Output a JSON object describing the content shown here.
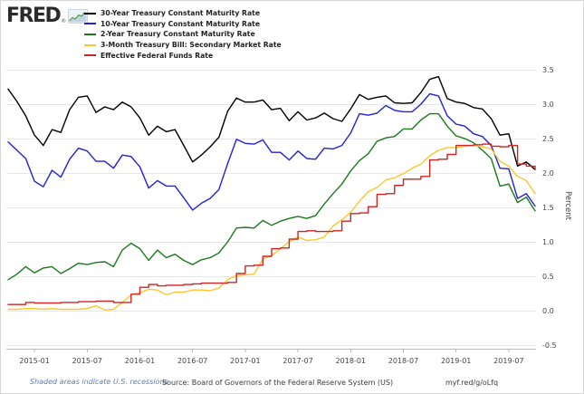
{
  "brand": {
    "logo_text": "FRED",
    "registered_mark": "®"
  },
  "y_axis": {
    "label": "Percent",
    "ticks": [
      3.5,
      3.0,
      2.5,
      2.0,
      1.5,
      1.0,
      0.5,
      0.0,
      -0.5
    ]
  },
  "x_axis": {
    "ticks": [
      {
        "label": "2015-01",
        "index": 3
      },
      {
        "label": "2015-07",
        "index": 9
      },
      {
        "label": "2016-01",
        "index": 15
      },
      {
        "label": "2016-07",
        "index": 21
      },
      {
        "label": "2017-01",
        "index": 27
      },
      {
        "label": "2017-07",
        "index": 33
      },
      {
        "label": "2018-01",
        "index": 39
      },
      {
        "label": "2018-07",
        "index": 45
      },
      {
        "label": "2019-01",
        "index": 51
      },
      {
        "label": "2019-07",
        "index": 57
      }
    ]
  },
  "footer": {
    "recession_note": "Shaded areas indicate U.S. recessions",
    "source": "Source: Board of Governors of the Federal Reserve System (US)",
    "short_url": "myf.red/g/oLfq"
  },
  "chart_data": {
    "type": "line",
    "title": "",
    "xlabel": "",
    "ylabel": "Percent",
    "ylim": [
      -0.5,
      3.5
    ],
    "grid": "horizontal",
    "legend_position": "top-left",
    "x": [
      "2014-10",
      "2014-11",
      "2014-12",
      "2015-01",
      "2015-02",
      "2015-03",
      "2015-04",
      "2015-05",
      "2015-06",
      "2015-07",
      "2015-08",
      "2015-09",
      "2015-10",
      "2015-11",
      "2015-12",
      "2016-01",
      "2016-02",
      "2016-03",
      "2016-04",
      "2016-05",
      "2016-06",
      "2016-07",
      "2016-08",
      "2016-09",
      "2016-10",
      "2016-11",
      "2016-12",
      "2017-01",
      "2017-02",
      "2017-03",
      "2017-04",
      "2017-05",
      "2017-06",
      "2017-07",
      "2017-08",
      "2017-09",
      "2017-10",
      "2017-11",
      "2017-12",
      "2018-01",
      "2018-02",
      "2018-03",
      "2018-04",
      "2018-05",
      "2018-06",
      "2018-07",
      "2018-08",
      "2018-09",
      "2018-10",
      "2018-11",
      "2018-12",
      "2019-01",
      "2019-02",
      "2019-03",
      "2019-04",
      "2019-05",
      "2019-06",
      "2019-07",
      "2019-08",
      "2019-09",
      "2019-10"
    ],
    "series": [
      {
        "name": "30-Year Treasury Constant Maturity Rate",
        "color": "#000000",
        "step": false,
        "values": [
          3.22,
          3.04,
          2.83,
          2.55,
          2.4,
          2.63,
          2.59,
          2.92,
          3.1,
          3.12,
          2.88,
          2.96,
          2.92,
          3.03,
          2.96,
          2.8,
          2.55,
          2.68,
          2.6,
          2.63,
          2.4,
          2.16,
          2.26,
          2.38,
          2.52,
          2.9,
          3.09,
          3.03,
          3.03,
          3.06,
          2.92,
          2.94,
          2.76,
          2.89,
          2.77,
          2.8,
          2.87,
          2.79,
          2.75,
          2.93,
          3.14,
          3.07,
          3.1,
          3.12,
          3.02,
          3.01,
          3.02,
          3.17,
          3.36,
          3.4,
          3.08,
          3.03,
          3.01,
          2.95,
          2.93,
          2.79,
          2.55,
          2.57,
          2.1,
          2.16,
          2.05
        ]
      },
      {
        "name": "10-Year Treasury Constant Maturity Rate",
        "color": "#2020dd",
        "step": false,
        "values": [
          2.45,
          2.33,
          2.21,
          1.88,
          1.8,
          2.04,
          1.94,
          2.2,
          2.36,
          2.32,
          2.17,
          2.17,
          2.07,
          2.26,
          2.24,
          2.09,
          1.78,
          1.89,
          1.81,
          1.81,
          1.64,
          1.46,
          1.56,
          1.63,
          1.76,
          2.14,
          2.49,
          2.43,
          2.42,
          2.48,
          2.3,
          2.3,
          2.19,
          2.32,
          2.21,
          2.2,
          2.36,
          2.35,
          2.4,
          2.58,
          2.86,
          2.84,
          2.87,
          2.98,
          2.91,
          2.89,
          2.89,
          3.0,
          3.15,
          3.12,
          2.83,
          2.71,
          2.68,
          2.57,
          2.53,
          2.4,
          2.07,
          2.06,
          1.63,
          1.7,
          1.52
        ]
      },
      {
        "name": "2-Year Treasury Constant Maturity Rate",
        "color": "#1a7a1a",
        "step": false,
        "values": [
          0.45,
          0.53,
          0.64,
          0.55,
          0.62,
          0.64,
          0.54,
          0.61,
          0.69,
          0.67,
          0.7,
          0.71,
          0.64,
          0.88,
          0.98,
          0.9,
          0.73,
          0.88,
          0.77,
          0.82,
          0.73,
          0.67,
          0.74,
          0.77,
          0.84,
          1.0,
          1.2,
          1.21,
          1.2,
          1.31,
          1.24,
          1.3,
          1.34,
          1.37,
          1.34,
          1.38,
          1.55,
          1.7,
          1.84,
          2.03,
          2.18,
          2.28,
          2.46,
          2.51,
          2.53,
          2.64,
          2.64,
          2.77,
          2.86,
          2.86,
          2.68,
          2.54,
          2.5,
          2.44,
          2.33,
          2.21,
          1.81,
          1.84,
          1.57,
          1.65,
          1.45
        ]
      },
      {
        "name": "3-Month Treasury Bill: Secondary Market Rate",
        "color": "#fdc62e",
        "step": false,
        "values": [
          0.02,
          0.02,
          0.03,
          0.03,
          0.02,
          0.03,
          0.02,
          0.02,
          0.02,
          0.03,
          0.07,
          0.01,
          0.02,
          0.12,
          0.23,
          0.26,
          0.31,
          0.3,
          0.23,
          0.27,
          0.27,
          0.3,
          0.3,
          0.29,
          0.33,
          0.45,
          0.51,
          0.52,
          0.53,
          0.75,
          0.8,
          0.9,
          1.0,
          1.07,
          1.02,
          1.03,
          1.07,
          1.23,
          1.32,
          1.43,
          1.59,
          1.73,
          1.79,
          1.9,
          1.93,
          1.99,
          2.07,
          2.13,
          2.25,
          2.33,
          2.37,
          2.37,
          2.39,
          2.4,
          2.38,
          2.35,
          2.17,
          2.1,
          1.95,
          1.89,
          1.7
        ]
      },
      {
        "name": "Effective Federal Funds Rate",
        "color": "#cf2424",
        "step": true,
        "values": [
          0.09,
          0.09,
          0.12,
          0.11,
          0.11,
          0.11,
          0.12,
          0.12,
          0.13,
          0.13,
          0.14,
          0.14,
          0.12,
          0.12,
          0.24,
          0.34,
          0.38,
          0.36,
          0.37,
          0.37,
          0.38,
          0.39,
          0.4,
          0.4,
          0.4,
          0.41,
          0.54,
          0.65,
          0.66,
          0.79,
          0.9,
          0.91,
          1.04,
          1.15,
          1.16,
          1.15,
          1.15,
          1.16,
          1.3,
          1.41,
          1.42,
          1.51,
          1.69,
          1.7,
          1.82,
          1.91,
          1.91,
          1.95,
          2.19,
          2.2,
          2.27,
          2.4,
          2.4,
          2.41,
          2.42,
          2.39,
          2.38,
          2.4,
          2.13,
          2.1,
          2.05
        ]
      }
    ]
  }
}
